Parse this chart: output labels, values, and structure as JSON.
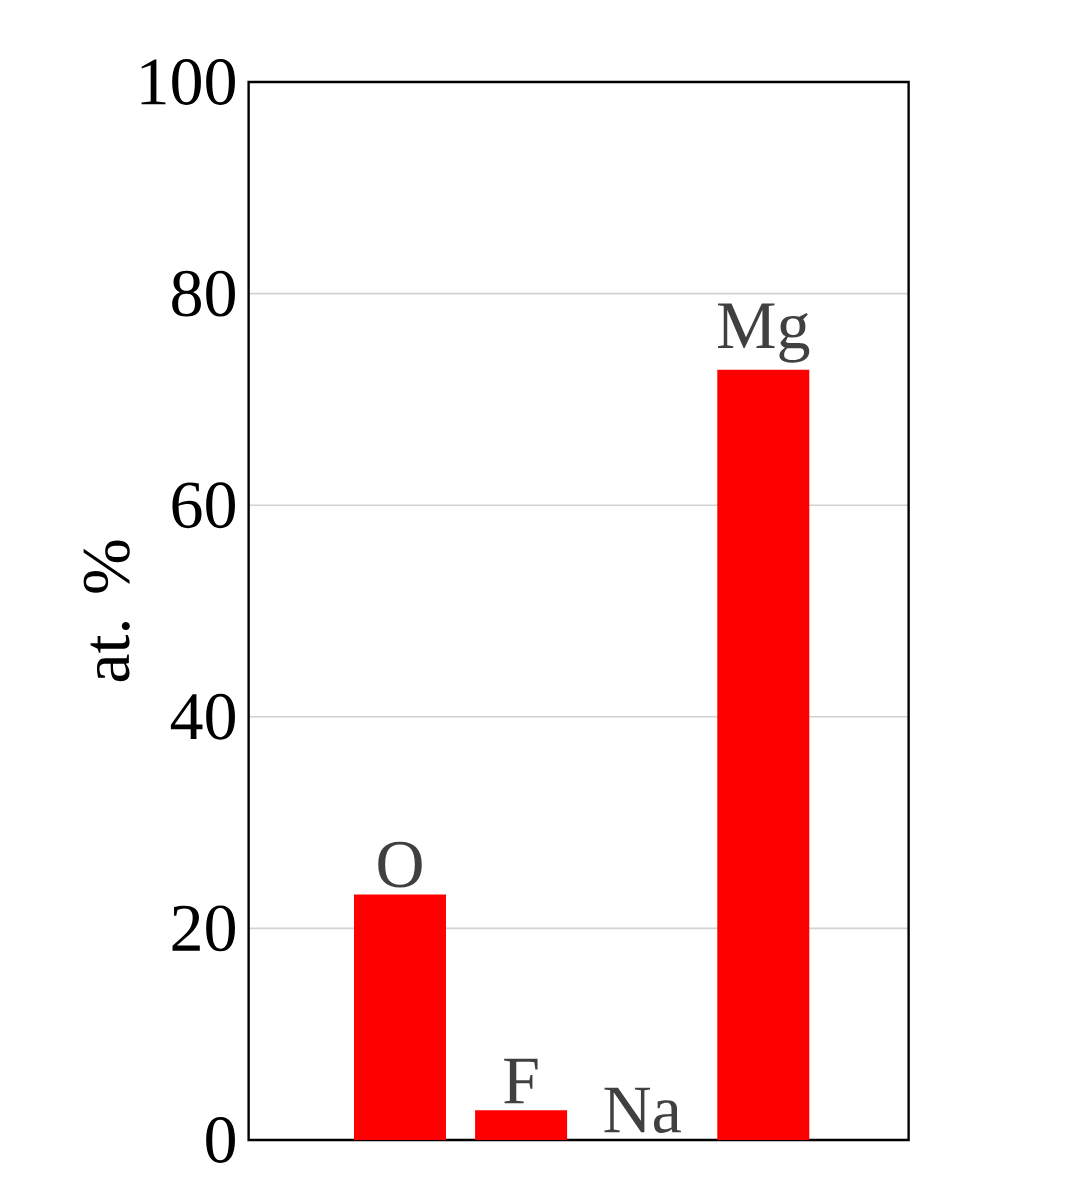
{
  "chart_data": {
    "type": "bar",
    "ylabel": "at. %",
    "categories": [
      "O",
      "F",
      "Na",
      "Mg"
    ],
    "values": [
      23.2,
      2.8,
      0,
      72.8
    ],
    "color": "#ff0000",
    "ylim": [
      0,
      100
    ],
    "yticks": [
      0,
      20,
      40,
      60,
      80,
      100
    ],
    "grid": "y",
    "tick_labels": "y"
  }
}
